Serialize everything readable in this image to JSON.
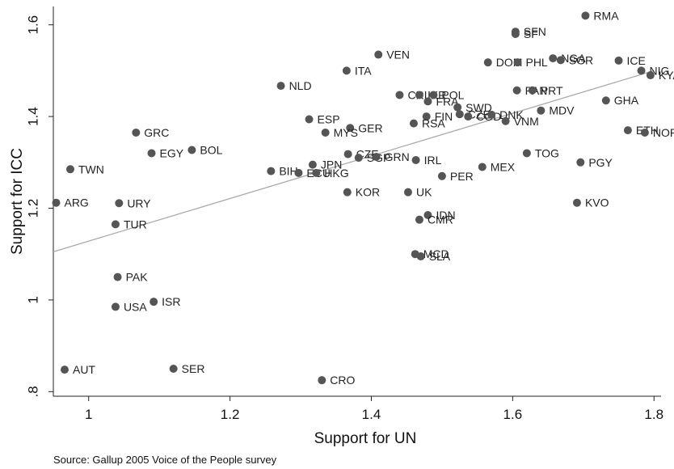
{
  "chart_data": {
    "type": "scatter",
    "title": "",
    "xlabel": "Support for UN",
    "ylabel": "Support for ICC",
    "xlim": [
      0.95,
      1.81
    ],
    "ylim": [
      0.79,
      1.64
    ],
    "xticks": [
      1,
      1.2,
      1.4,
      1.6,
      1.8
    ],
    "xtick_labels": [
      "1",
      "1.2",
      "1.4",
      "1.6",
      "1.8"
    ],
    "yticks": [
      0.8,
      1,
      1.2,
      1.4,
      1.6
    ],
    "ytick_labels": [
      ".8",
      "1",
      "1.2",
      "1.4",
      "1.6"
    ],
    "grid": false,
    "point_color": "#555555",
    "fit_line_color": "#aaaaaa",
    "fit_line": {
      "x": [
        0.95,
        1.8
      ],
      "y": [
        1.105,
        1.5
      ]
    },
    "points": [
      {
        "label": "RMA",
        "x": 1.703,
        "y": 1.62
      },
      {
        "label": "SFN",
        "x": 1.604,
        "y": 1.585
      },
      {
        "label": "SF",
        "x": 1.604,
        "y": 1.58
      },
      {
        "label": "VEN",
        "x": 1.41,
        "y": 1.535
      },
      {
        "label": "DOM",
        "x": 1.565,
        "y": 1.518
      },
      {
        "label": "PHL",
        "x": 1.607,
        "y": 1.518
      },
      {
        "label": "NGA",
        "x": 1.657,
        "y": 1.527
      },
      {
        "label": "SGR",
        "x": 1.668,
        "y": 1.523
      },
      {
        "label": "ICE",
        "x": 1.75,
        "y": 1.522
      },
      {
        "label": "NIG",
        "x": 1.782,
        "y": 1.5
      },
      {
        "label": "KYA",
        "x": 1.795,
        "y": 1.49
      },
      {
        "label": "ITA",
        "x": 1.365,
        "y": 1.5
      },
      {
        "label": "NLD",
        "x": 1.272,
        "y": 1.467
      },
      {
        "label": "PAN",
        "x": 1.606,
        "y": 1.457
      },
      {
        "label": "PRT",
        "x": 1.628,
        "y": 1.457
      },
      {
        "label": "CRI",
        "x": 1.44,
        "y": 1.447
      },
      {
        "label": "IKR",
        "x": 1.468,
        "y": 1.447
      },
      {
        "label": "POL",
        "x": 1.488,
        "y": 1.447
      },
      {
        "label": "FRA",
        "x": 1.48,
        "y": 1.433
      },
      {
        "label": "SWD",
        "x": 1.522,
        "y": 1.42
      },
      {
        "label": "GHA",
        "x": 1.732,
        "y": 1.435
      },
      {
        "label": "MDV",
        "x": 1.64,
        "y": 1.413
      },
      {
        "label": "FIN",
        "x": 1.478,
        "y": 1.4
      },
      {
        "label": "CZE",
        "x": 1.525,
        "y": 1.405
      },
      {
        "label": "COD",
        "x": 1.537,
        "y": 1.4
      },
      {
        "label": "DNK",
        "x": 1.57,
        "y": 1.404
      },
      {
        "label": "VNM",
        "x": 1.59,
        "y": 1.39
      },
      {
        "label": "RSA",
        "x": 1.46,
        "y": 1.385
      },
      {
        "label": "ESP",
        "x": 1.312,
        "y": 1.394
      },
      {
        "label": "GER",
        "x": 1.37,
        "y": 1.375
      },
      {
        "label": "MYS",
        "x": 1.335,
        "y": 1.365
      },
      {
        "label": "GRC",
        "x": 1.067,
        "y": 1.365
      },
      {
        "label": "ETH",
        "x": 1.763,
        "y": 1.37
      },
      {
        "label": "NOR",
        "x": 1.787,
        "y": 1.365
      },
      {
        "label": "BOL",
        "x": 1.146,
        "y": 1.327
      },
      {
        "label": "EGY",
        "x": 1.089,
        "y": 1.32
      },
      {
        "label": "TOG",
        "x": 1.62,
        "y": 1.32
      },
      {
        "label": "CZE",
        "x": 1.367,
        "y": 1.318
      },
      {
        "label": "SGP",
        "x": 1.382,
        "y": 1.31
      },
      {
        "label": "GRN",
        "x": 1.407,
        "y": 1.312
      },
      {
        "label": "IRL",
        "x": 1.463,
        "y": 1.305
      },
      {
        "label": "PGY",
        "x": 1.696,
        "y": 1.3
      },
      {
        "label": "MEX",
        "x": 1.557,
        "y": 1.29
      },
      {
        "label": "TWN",
        "x": 0.974,
        "y": 1.285
      },
      {
        "label": "JPN",
        "x": 1.317,
        "y": 1.295
      },
      {
        "label": "BIH",
        "x": 1.258,
        "y": 1.281
      },
      {
        "label": "ECU",
        "x": 1.297,
        "y": 1.277
      },
      {
        "label": "HKG",
        "x": 1.322,
        "y": 1.277
      },
      {
        "label": "PER",
        "x": 1.5,
        "y": 1.27
      },
      {
        "label": "KOR",
        "x": 1.366,
        "y": 1.235
      },
      {
        "label": "UK",
        "x": 1.452,
        "y": 1.235
      },
      {
        "label": "ARG",
        "x": 0.954,
        "y": 1.212
      },
      {
        "label": "URY",
        "x": 1.043,
        "y": 1.211
      },
      {
        "label": "KVO",
        "x": 1.691,
        "y": 1.212
      },
      {
        "label": "IDN",
        "x": 1.48,
        "y": 1.185
      },
      {
        "label": "CMR",
        "x": 1.468,
        "y": 1.175
      },
      {
        "label": "TUR",
        "x": 1.038,
        "y": 1.165
      },
      {
        "label": "MCD",
        "x": 1.462,
        "y": 1.1
      },
      {
        "label": "SLA",
        "x": 1.47,
        "y": 1.095
      },
      {
        "label": "PAK",
        "x": 1.041,
        "y": 1.05
      },
      {
        "label": "USA",
        "x": 1.038,
        "y": 0.985
      },
      {
        "label": "ISR",
        "x": 1.092,
        "y": 0.996
      },
      {
        "label": "AUT",
        "x": 0.966,
        "y": 0.848
      },
      {
        "label": "SER",
        "x": 1.12,
        "y": 0.85
      },
      {
        "label": "CRO",
        "x": 1.33,
        "y": 0.825
      }
    ]
  },
  "source_text": "Source: Gallup 2005 Voice of the People survey"
}
